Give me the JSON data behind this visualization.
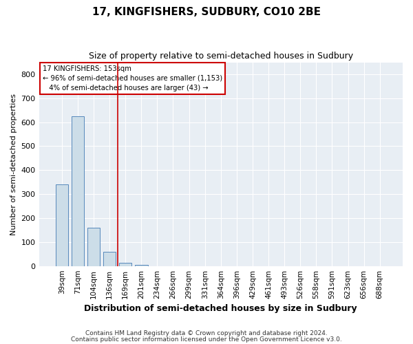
{
  "title": "17, KINGFISHERS, SUDBURY, CO10 2BE",
  "subtitle": "Size of property relative to semi-detached houses in Sudbury",
  "xlabel": "Distribution of semi-detached houses by size in Sudbury",
  "ylabel": "Number of semi-detached properties",
  "footnote1": "Contains HM Land Registry data © Crown copyright and database right 2024.",
  "footnote2": "Contains public sector information licensed under the Open Government Licence v3.0.",
  "categories": [
    "39sqm",
    "71sqm",
    "104sqm",
    "136sqm",
    "169sqm",
    "201sqm",
    "234sqm",
    "266sqm",
    "299sqm",
    "331sqm",
    "364sqm",
    "396sqm",
    "429sqm",
    "461sqm",
    "493sqm",
    "526sqm",
    "558sqm",
    "591sqm",
    "623sqm",
    "656sqm",
    "688sqm"
  ],
  "values": [
    340,
    625,
    160,
    60,
    13,
    6,
    0,
    0,
    0,
    0,
    0,
    0,
    0,
    0,
    0,
    0,
    0,
    0,
    0,
    0,
    0
  ],
  "bar_color": "#ccdde8",
  "bar_edge_color": "#5588bb",
  "ylim": [
    0,
    850
  ],
  "yticks": [
    0,
    100,
    200,
    300,
    400,
    500,
    600,
    700,
    800
  ],
  "pct_smaller": 96,
  "n_smaller": 1153,
  "pct_larger": 4,
  "n_larger": 43,
  "vline_color": "#cc0000",
  "annotation_box_edge": "#cc0000",
  "background_color": "#ffffff",
  "grid_color": "#cccccc",
  "vline_x": 3.5
}
